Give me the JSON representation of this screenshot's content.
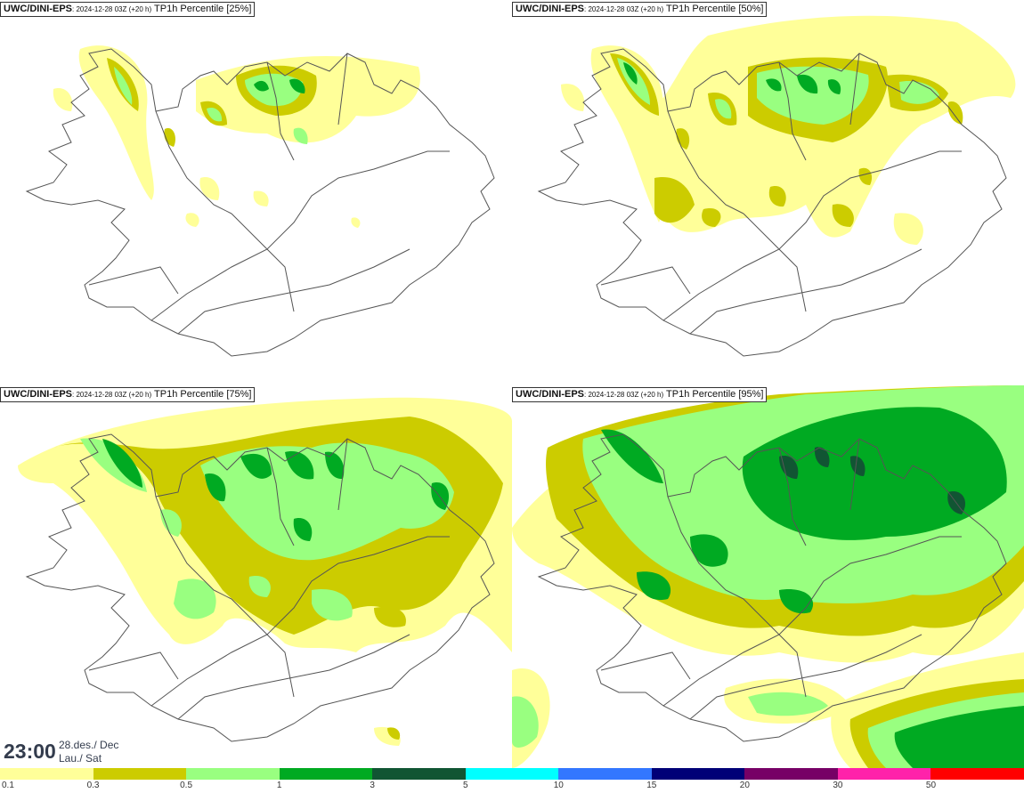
{
  "panels": [
    {
      "model": "UWC/DINI-EPS",
      "run": ": 2024-12-28 03Z (+20 h)",
      "field": " TP1h Percentile [25%]"
    },
    {
      "model": "UWC/DINI-EPS",
      "run": ": 2024-12-28 03Z (+20 h)",
      "field": " TP1h Percentile [50%]"
    },
    {
      "model": "UWC/DINI-EPS",
      "run": ": 2024-12-28 03Z (+20 h)",
      "field": " TP1h Percentile [75%]"
    },
    {
      "model": "UWC/DINI-EPS",
      "run": ": 2024-12-28 03Z (+20 h)",
      "field": " TP1h Percentile [95%]"
    }
  ],
  "valid_time": {
    "time": "23:00",
    "date_line1": "28.des./ Dec",
    "date_line2": "Lau./ Sat"
  },
  "legend": {
    "labels": [
      "0.1",
      "0.3",
      "0.5",
      "1",
      "3",
      "5",
      "10",
      "15",
      "20",
      "30",
      "50"
    ],
    "colors": [
      "#ffff99",
      "#cccc00",
      "#99ff80",
      "#00aa22",
      "#115533",
      "#00ffff",
      "#3377ff",
      "#000077",
      "#770066",
      "#ff22aa",
      "#ff0000"
    ]
  },
  "precip_colors": {
    "light": "#ffff99",
    "olive": "#cccc00",
    "lightgreen": "#99ff80",
    "green": "#00aa22",
    "darkgreen": "#115533"
  },
  "outline_color": "#555555"
}
